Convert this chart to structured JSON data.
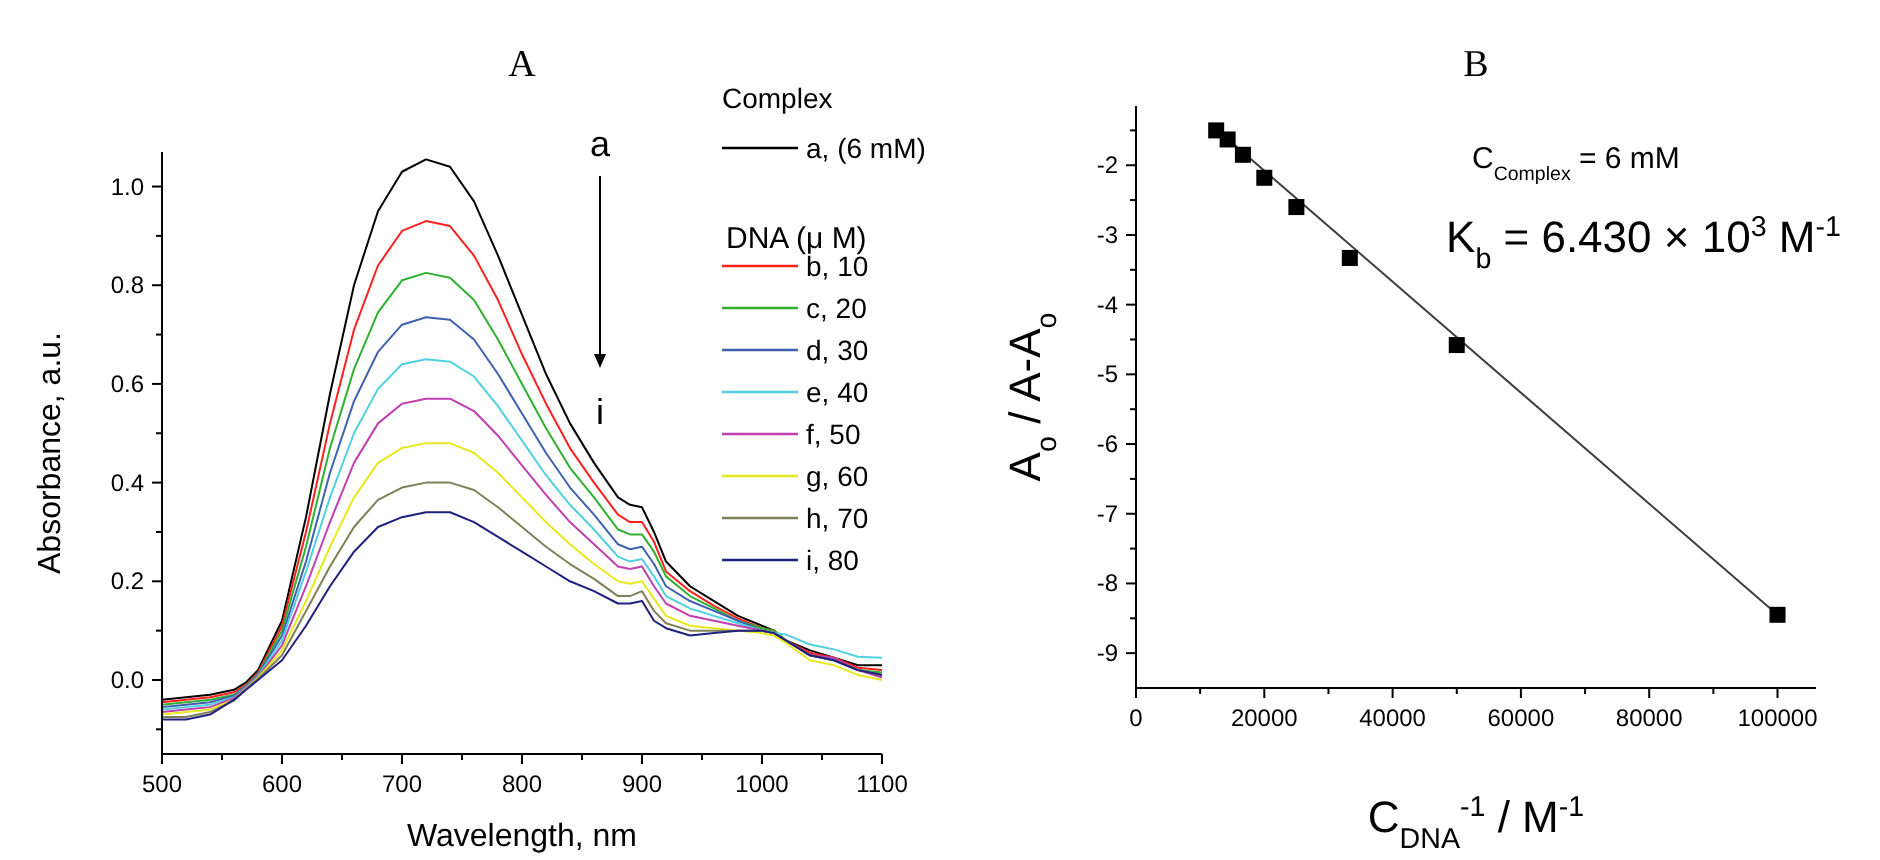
{
  "chart_data": [
    {
      "type": "line",
      "title": "A",
      "xlabel": "Wavelength, nm",
      "ylabel": "Absorbance, a.u.",
      "legend_title": "Complex",
      "legend": "top right",
      "grid": false,
      "marker": "none",
      "line_style": "solid",
      "annotations": [
        "DNA    (μ M)",
        "a",
        "i"
      ],
      "xlim": [
        500,
        1100
      ],
      "ylim": [
        -0.15,
        1.07
      ],
      "xticks": [
        500,
        {
          "value": 550,
          "label": null
        },
        600,
        {
          "value": 650,
          "label": null
        },
        700,
        {
          "value": 750,
          "label": null
        },
        800,
        {
          "value": 850,
          "label": null
        },
        900,
        {
          "value": 950,
          "label": null
        },
        1000,
        {
          "value": 1050,
          "label": null
        },
        1100
      ],
      "yticks": [
        {
          "value": -0.1,
          "label": null
        },
        {
          "value": 0,
          "label": "0.0"
        },
        {
          "value": 0.1,
          "label": null
        },
        {
          "value": 0.2,
          "label": "0.2"
        },
        {
          "value": 0.3,
          "label": null
        },
        {
          "value": 0.4,
          "label": "0.4"
        },
        {
          "value": 0.5,
          "label": null
        },
        {
          "value": 0.6,
          "label": "0.6"
        },
        {
          "value": 0.7,
          "label": null
        },
        {
          "value": 0.8,
          "label": "0.8"
        },
        {
          "value": 0.9,
          "label": null
        },
        {
          "value": 1,
          "label": "1.0"
        }
      ],
      "x": [
        500,
        520,
        540,
        560,
        570,
        580,
        600,
        620,
        640,
        660,
        680,
        700,
        720,
        740,
        760,
        780,
        800,
        820,
        840,
        860,
        880,
        890,
        900,
        910,
        920,
        940,
        960,
        980,
        1000,
        1010,
        1020,
        1040,
        1060,
        1080,
        1100
      ],
      "series": [
        {
          "name": "a, (6 mM)",
          "color": "#000000",
          "values": [
            -0.04,
            -0.035,
            -0.03,
            -0.02,
            -0.005,
            0.02,
            0.12,
            0.33,
            0.58,
            0.8,
            0.95,
            1.03,
            1.055,
            1.04,
            0.97,
            0.86,
            0.74,
            0.62,
            0.52,
            0.44,
            0.37,
            0.355,
            0.35,
            0.3,
            0.24,
            0.19,
            0.16,
            0.13,
            0.11,
            0.1,
            0.08,
            0.06,
            0.045,
            0.03,
            0.03
          ]
        },
        {
          "name": "b, 10",
          "color": "#ff2020",
          "values": [
            -0.045,
            -0.04,
            -0.035,
            -0.025,
            -0.01,
            0.015,
            0.11,
            0.3,
            0.52,
            0.71,
            0.84,
            0.91,
            0.93,
            0.92,
            0.86,
            0.77,
            0.66,
            0.56,
            0.47,
            0.4,
            0.335,
            0.32,
            0.32,
            0.28,
            0.22,
            0.18,
            0.15,
            0.125,
            0.105,
            0.1,
            0.08,
            0.055,
            0.045,
            0.025,
            0.02
          ]
        },
        {
          "name": "c, 20",
          "color": "#30b030",
          "values": [
            -0.05,
            -0.045,
            -0.04,
            -0.03,
            -0.012,
            0.012,
            0.1,
            0.27,
            0.47,
            0.63,
            0.745,
            0.81,
            0.825,
            0.815,
            0.77,
            0.69,
            0.6,
            0.51,
            0.43,
            0.37,
            0.305,
            0.295,
            0.295,
            0.26,
            0.21,
            0.17,
            0.145,
            0.12,
            0.105,
            0.1,
            0.08,
            0.05,
            0.04,
            0.02,
            0.015
          ]
        },
        {
          "name": "d, 30",
          "color": "#4060b0",
          "values": [
            -0.055,
            -0.05,
            -0.045,
            -0.032,
            -0.013,
            0.01,
            0.09,
            0.24,
            0.42,
            0.565,
            0.665,
            0.72,
            0.735,
            0.73,
            0.69,
            0.62,
            0.54,
            0.46,
            0.39,
            0.335,
            0.275,
            0.265,
            0.27,
            0.235,
            0.19,
            0.16,
            0.14,
            0.12,
            0.1,
            0.095,
            0.08,
            0.05,
            0.04,
            0.02,
            0.01
          ]
        },
        {
          "name": "e, 40",
          "color": "#50d0e0",
          "values": [
            -0.06,
            -0.055,
            -0.05,
            -0.035,
            -0.015,
            0.008,
            0.08,
            0.22,
            0.37,
            0.5,
            0.59,
            0.64,
            0.65,
            0.645,
            0.615,
            0.555,
            0.485,
            0.415,
            0.355,
            0.305,
            0.25,
            0.24,
            0.245,
            0.21,
            0.17,
            0.145,
            0.13,
            0.115,
            0.1,
            0.095,
            0.092,
            0.072,
            0.062,
            0.047,
            0.045
          ]
        },
        {
          "name": "f,  50",
          "color": "#c040b0",
          "values": [
            -0.065,
            -0.06,
            -0.055,
            -0.037,
            -0.016,
            0.006,
            0.07,
            0.19,
            0.32,
            0.44,
            0.52,
            0.56,
            0.57,
            0.57,
            0.545,
            0.495,
            0.435,
            0.375,
            0.32,
            0.275,
            0.23,
            0.225,
            0.23,
            0.19,
            0.155,
            0.13,
            0.12,
            0.11,
            0.1,
            0.095,
            0.08,
            0.05,
            0.045,
            0.02,
            0.005
          ]
        },
        {
          "name": "g, 60",
          "color": "#e8e820",
          "values": [
            -0.07,
            -0.065,
            -0.06,
            -0.04,
            -0.018,
            0.004,
            0.06,
            0.16,
            0.27,
            0.37,
            0.44,
            0.47,
            0.48,
            0.48,
            0.46,
            0.42,
            0.37,
            0.32,
            0.275,
            0.235,
            0.2,
            0.195,
            0.2,
            0.165,
            0.13,
            0.11,
            0.105,
            0.1,
            0.095,
            0.09,
            0.075,
            0.04,
            0.03,
            0.01,
            0.0
          ]
        },
        {
          "name": "h, 70",
          "color": "#808058",
          "values": [
            -0.075,
            -0.075,
            -0.065,
            -0.042,
            -0.019,
            0.002,
            0.05,
            0.14,
            0.23,
            0.31,
            0.365,
            0.39,
            0.4,
            0.4,
            0.385,
            0.35,
            0.31,
            0.27,
            0.235,
            0.205,
            0.17,
            0.17,
            0.18,
            0.14,
            0.115,
            0.1,
            0.1,
            0.1,
            0.1,
            0.095,
            0.08,
            0.05,
            0.04,
            0.02,
            0.01
          ]
        },
        {
          "name": "i,  80",
          "color": "#202080",
          "values": [
            -0.08,
            -0.08,
            -0.07,
            -0.04,
            -0.02,
            0.0,
            0.04,
            0.11,
            0.19,
            0.26,
            0.31,
            0.33,
            0.34,
            0.34,
            0.32,
            0.29,
            0.26,
            0.23,
            0.2,
            0.18,
            0.155,
            0.155,
            0.16,
            0.12,
            0.105,
            0.09,
            0.095,
            0.1,
            0.1,
            0.095,
            0.08,
            0.05,
            0.04,
            0.02,
            0.01
          ]
        }
      ]
    },
    {
      "type": "scatter",
      "title": "B",
      "xlabel": "C$_{DNA}$$^{-1}$ / M$^{-1}$",
      "ylabel": "A$_{o}$ / A-A$_{o}$",
      "grid": false,
      "legend": false,
      "marker": "square",
      "annotations": [
        "C$_{Complex}$ = 6 mM",
        "K$_{b}$ = 6.430 × 10$^{3}$ M$^{-1}$"
      ],
      "xlim": [
        0,
        106000
      ],
      "ylim": [
        -9.5,
        -1.15
      ],
      "xticks": [
        0,
        {
          "value": 10000,
          "label": null
        },
        20000,
        {
          "value": 30000,
          "label": null
        },
        40000,
        {
          "value": 50000,
          "label": null
        },
        60000,
        {
          "value": 70000,
          "label": null
        },
        80000,
        {
          "value": 90000,
          "label": null
        },
        100000
      ],
      "yticks": [
        -9,
        {
          "value": -8.5,
          "label": null
        },
        -8,
        {
          "value": -7.5,
          "label": null
        },
        -7,
        {
          "value": -6.5,
          "label": null
        },
        -6,
        {
          "value": -5.5,
          "label": null
        },
        -5,
        {
          "value": -4.5,
          "label": null
        },
        -4,
        {
          "value": -3.5,
          "label": null
        },
        -3,
        {
          "value": -2.5,
          "label": null
        },
        -2,
        {
          "value": -1.5,
          "label": null
        }
      ],
      "series": [
        {
          "type": "line",
          "color": "#404040",
          "marker": "none",
          "x": [
            12500,
            100000
          ],
          "values": [
            -1.48,
            -8.45
          ]
        },
        {
          "color": "#000000",
          "x": [
            12500,
            14286,
            16667,
            20000,
            25000,
            33333,
            50000,
            100000
          ],
          "values": [
            -1.5,
            -1.63,
            -1.85,
            -2.18,
            -2.6,
            -3.33,
            -4.58,
            -8.45
          ]
        }
      ]
    }
  ]
}
